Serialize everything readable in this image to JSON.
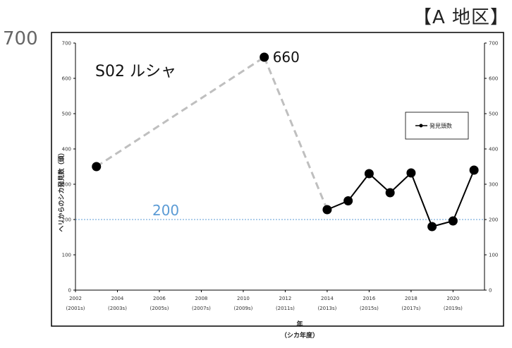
{
  "region_label": "【A 地区】",
  "outer_tick": "700",
  "chart_data": {
    "type": "line",
    "title": "S02 ルシャ",
    "ylabel": "ヘリからのシカ発見数（頭）",
    "xlabel": "年",
    "xlabel_sub": "（シカ年度）",
    "ylim": [
      0,
      700
    ],
    "xlim": [
      2002,
      2021.5
    ],
    "y_ticks": [
      0,
      100,
      200,
      300,
      400,
      500,
      600,
      700
    ],
    "x_ticks": [
      {
        "year": 2002,
        "sub": "(2001s)"
      },
      {
        "year": 2004,
        "sub": "(2003s)"
      },
      {
        "year": 2006,
        "sub": "(2005s)"
      },
      {
        "year": 2008,
        "sub": "(2007s)"
      },
      {
        "year": 2010,
        "sub": "(2009s)"
      },
      {
        "year": 2012,
        "sub": "(2011s)"
      },
      {
        "year": 2014,
        "sub": "(2013s)"
      },
      {
        "year": 2016,
        "sub": "(2015s)"
      },
      {
        "year": 2018,
        "sub": "(2017s)"
      },
      {
        "year": 2020,
        "sub": "(2019s)"
      }
    ],
    "series": [
      {
        "name": "発見頭数",
        "color": "#000000",
        "points": [
          {
            "x": 2003,
            "y": 350
          },
          {
            "x": 2011,
            "y": 660
          },
          {
            "x": 2014,
            "y": 228
          },
          {
            "x": 2015,
            "y": 253
          },
          {
            "x": 2016,
            "y": 330
          },
          {
            "x": 2017,
            "y": 276
          },
          {
            "x": 2018,
            "y": 332
          },
          {
            "x": 2019,
            "y": 180
          },
          {
            "x": 2020,
            "y": 196
          },
          {
            "x": 2021,
            "y": 340
          }
        ],
        "solid_from": 2014
      }
    ],
    "gap_connectors": [
      {
        "from": 2003,
        "to": 2011
      },
      {
        "from": 2011,
        "to": 2014
      }
    ],
    "reference_line": {
      "y": 200,
      "label": "200",
      "color": "#5b9bd5"
    },
    "peak_annotation": {
      "x": 2011,
      "y": 660,
      "label": "660"
    },
    "legend": {
      "label": "発見頭数",
      "position": "right"
    },
    "grid": false
  }
}
